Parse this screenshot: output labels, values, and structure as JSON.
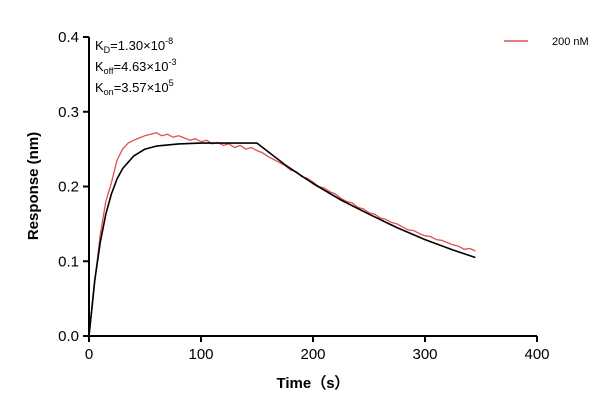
{
  "chart_data": {
    "type": "line",
    "title": "",
    "xlabel": "Time（s）",
    "ylabel": "Response (nm)",
    "xlim": [
      0,
      400
    ],
    "ylim": [
      0,
      0.4
    ],
    "xticks": [
      "0",
      "100",
      "200",
      "300",
      "400"
    ],
    "yticks": [
      "0.0",
      "0.1",
      "0.2",
      "0.3",
      "0.4"
    ],
    "grid": false,
    "legend_placement": "top-right",
    "annotations": {
      "kd": {
        "base": "K",
        "sub": "D",
        "text": "=1.30×10",
        "sup": "-8"
      },
      "koff": {
        "base": "K",
        "sub": "off",
        "text": "=4.63×10",
        "sup": "-3"
      },
      "kon": {
        "base": "K",
        "sub": "on",
        "text": "=3.57×10",
        "sup": "5"
      }
    },
    "series": [
      {
        "name": "200 nM",
        "color": "#e05050",
        "x": [
          0,
          3,
          5,
          10,
          15,
          20,
          25,
          30,
          35,
          40,
          45,
          50,
          55,
          60,
          65,
          70,
          75,
          80,
          85,
          90,
          95,
          100,
          105,
          110,
          115,
          120,
          125,
          130,
          135,
          140,
          145,
          150,
          155,
          160,
          165,
          170,
          175,
          180,
          185,
          190,
          195,
          200,
          205,
          210,
          215,
          220,
          225,
          230,
          235,
          240,
          245,
          250,
          255,
          260,
          265,
          270,
          275,
          280,
          285,
          290,
          295,
          300,
          305,
          310,
          315,
          320,
          325,
          330,
          335,
          340,
          345
        ],
        "y": [
          0,
          0.04,
          0.07,
          0.135,
          0.18,
          0.205,
          0.235,
          0.25,
          0.258,
          0.262,
          0.265,
          0.268,
          0.27,
          0.272,
          0.268,
          0.27,
          0.266,
          0.268,
          0.265,
          0.262,
          0.264,
          0.26,
          0.262,
          0.257,
          0.259,
          0.255,
          0.257,
          0.252,
          0.255,
          0.25,
          0.252,
          0.248,
          0.245,
          0.24,
          0.236,
          0.232,
          0.228,
          0.222,
          0.22,
          0.213,
          0.211,
          0.206,
          0.2,
          0.198,
          0.193,
          0.19,
          0.184,
          0.18,
          0.178,
          0.172,
          0.17,
          0.165,
          0.163,
          0.158,
          0.156,
          0.152,
          0.15,
          0.146,
          0.142,
          0.141,
          0.137,
          0.134,
          0.133,
          0.129,
          0.128,
          0.125,
          0.122,
          0.12,
          0.116,
          0.117,
          0.114
        ]
      },
      {
        "color": "#000000",
        "x": [
          0,
          5,
          10,
          15,
          20,
          25,
          30,
          40,
          50,
          60,
          80,
          100,
          150,
          175,
          200,
          225,
          250,
          275,
          300,
          325,
          345
        ],
        "y": [
          0,
          0.073,
          0.125,
          0.163,
          0.19,
          0.21,
          0.224,
          0.241,
          0.25,
          0.254,
          0.257,
          0.258,
          0.258,
          0.229,
          0.204,
          0.182,
          0.163,
          0.145,
          0.129,
          0.115,
          0.105
        ]
      }
    ]
  }
}
